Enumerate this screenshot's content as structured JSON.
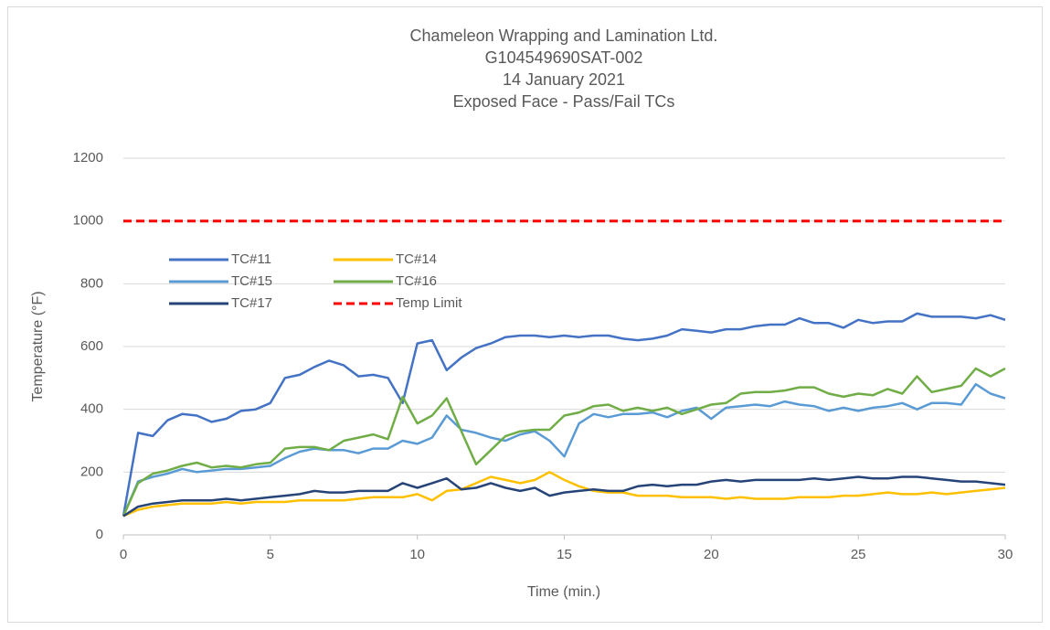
{
  "chart_data": {
    "type": "line",
    "title": [
      "Chameleon Wrapping and Lamination Ltd.",
      "G104549690SAT-002",
      "14 January 2021",
      "Exposed Face - Pass/Fail TCs"
    ],
    "x_label": "Time (min.)",
    "y_label": "Temperature (°F)",
    "x": [
      0,
      0.5,
      1,
      1.5,
      2,
      2.5,
      3,
      3.5,
      4,
      4.5,
      5,
      5.5,
      6,
      6.5,
      7,
      7.5,
      8,
      8.5,
      9,
      9.5,
      10,
      10.5,
      11,
      11.5,
      12,
      12.5,
      13,
      13.5,
      14,
      14.5,
      15,
      15.5,
      16,
      16.5,
      17,
      17.5,
      18,
      18.5,
      19,
      19.5,
      20,
      20.5,
      21,
      21.5,
      22,
      22.5,
      23,
      23.5,
      24,
      24.5,
      25,
      25.5,
      26,
      26.5,
      27,
      27.5,
      28,
      28.5,
      29,
      29.5,
      30
    ],
    "xlim": [
      0,
      30
    ],
    "xticks": [
      0,
      5,
      10,
      15,
      20,
      25,
      30
    ],
    "ylim": [
      0,
      1200
    ],
    "yticks": [
      0,
      200,
      400,
      600,
      800,
      1000,
      1200
    ],
    "grid": true,
    "legend": "upper left",
    "series": [
      {
        "name": "TC#11",
        "color": "#4472c4",
        "values": [
          60,
          325,
          315,
          365,
          385,
          380,
          360,
          370,
          395,
          400,
          420,
          500,
          510,
          535,
          555,
          540,
          505,
          510,
          500,
          420,
          610,
          620,
          525,
          565,
          595,
          610,
          630,
          635,
          635,
          630,
          635,
          630,
          635,
          635,
          625,
          620,
          625,
          635,
          655,
          650,
          645,
          655,
          655,
          665,
          670,
          670,
          690,
          675,
          675,
          660,
          685,
          675,
          680,
          680,
          705,
          695,
          695,
          695,
          690,
          700,
          685
        ]
      },
      {
        "name": "TC#14",
        "color": "#ffc000",
        "values": [
          60,
          80,
          90,
          95,
          100,
          100,
          100,
          105,
          100,
          105,
          105,
          105,
          110,
          110,
          110,
          110,
          115,
          120,
          120,
          120,
          130,
          110,
          140,
          145,
          165,
          185,
          175,
          165,
          175,
          200,
          175,
          155,
          140,
          135,
          135,
          125,
          125,
          125,
          120,
          120,
          120,
          115,
          120,
          115,
          115,
          115,
          120,
          120,
          120,
          125,
          125,
          130,
          135,
          130,
          130,
          135,
          130,
          135,
          140,
          145,
          150
        ]
      },
      {
        "name": "TC#15",
        "color": "#5b9bd5",
        "values": [
          60,
          170,
          185,
          195,
          210,
          200,
          205,
          210,
          210,
          215,
          220,
          245,
          265,
          275,
          270,
          270,
          260,
          275,
          275,
          300,
          290,
          310,
          380,
          335,
          325,
          310,
          300,
          320,
          330,
          300,
          250,
          355,
          385,
          375,
          385,
          385,
          390,
          375,
          395,
          405,
          370,
          405,
          410,
          415,
          410,
          425,
          415,
          410,
          395,
          405,
          395,
          405,
          410,
          420,
          400,
          420,
          420,
          415,
          480,
          450,
          435
        ]
      },
      {
        "name": "TC#16",
        "color": "#70ad47",
        "values": [
          60,
          165,
          195,
          205,
          220,
          230,
          215,
          220,
          215,
          225,
          230,
          275,
          280,
          280,
          270,
          300,
          310,
          320,
          305,
          440,
          355,
          380,
          435,
          330,
          225,
          270,
          315,
          330,
          335,
          335,
          380,
          390,
          410,
          415,
          395,
          405,
          395,
          405,
          385,
          400,
          415,
          420,
          450,
          455,
          455,
          460,
          470,
          470,
          450,
          440,
          450,
          445,
          465,
          450,
          505,
          455,
          465,
          475,
          530,
          505,
          530
        ]
      },
      {
        "name": "TC#17",
        "color": "#264478",
        "values": [
          60,
          90,
          100,
          105,
          110,
          110,
          110,
          115,
          110,
          115,
          120,
          125,
          130,
          140,
          135,
          135,
          140,
          140,
          140,
          165,
          150,
          165,
          180,
          145,
          150,
          165,
          150,
          140,
          150,
          125,
          135,
          140,
          145,
          140,
          140,
          155,
          160,
          155,
          160,
          160,
          170,
          175,
          170,
          175,
          175,
          175,
          175,
          180,
          175,
          180,
          185,
          180,
          180,
          185,
          185,
          180,
          175,
          170,
          170,
          165,
          160
        ]
      },
      {
        "name": "Temp Limit",
        "color": "#ff0000",
        "dashed": true,
        "x": [
          0,
          30
        ],
        "values": [
          1000,
          1000
        ]
      }
    ]
  }
}
